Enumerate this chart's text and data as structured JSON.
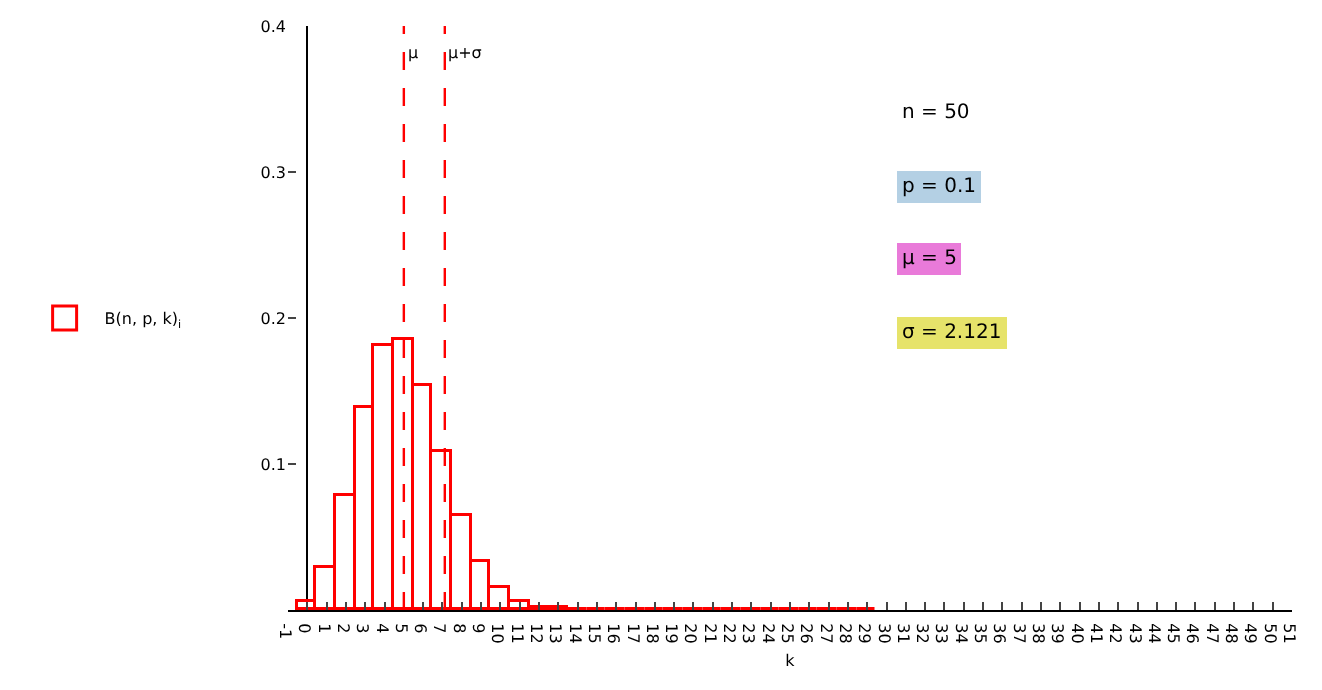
{
  "chart_data": {
    "type": "bar",
    "xlabel": "k",
    "legend": "left",
    "grid": false,
    "x": [
      0,
      1,
      2,
      3,
      4,
      5,
      6,
      7,
      8,
      9,
      10,
      11,
      12,
      13,
      14,
      15,
      16,
      17,
      18,
      19,
      20,
      21,
      22,
      23,
      24,
      25,
      26,
      27,
      28,
      29
    ],
    "series": [
      {
        "name": "B(n, p, k)$_{i}$",
        "color": "#ff0000",
        "values": [
          0.005,
          0.029,
          0.078,
          0.139,
          0.181,
          0.185,
          0.154,
          0.108,
          0.064,
          0.033,
          0.015,
          0.006,
          0.002,
          0.001,
          0,
          0,
          0,
          0,
          0,
          0,
          0,
          0,
          0,
          0,
          0,
          0,
          0,
          0,
          0,
          0
        ]
      }
    ],
    "xlim": [
      -1,
      51
    ],
    "xticks": [
      -1,
      0,
      1,
      2,
      3,
      4,
      5,
      6,
      7,
      8,
      9,
      10,
      11,
      12,
      13,
      14,
      15,
      16,
      17,
      18,
      19,
      20,
      21,
      22,
      23,
      24,
      25,
      26,
      27,
      28,
      29,
      30,
      31,
      32,
      33,
      34,
      35,
      36,
      37,
      38,
      39,
      40,
      41,
      42,
      43,
      44,
      45,
      46,
      47,
      48,
      49,
      50,
      51
    ],
    "ylim": [
      0,
      0.4
    ],
    "yticks": [
      {
        "value": 0,
        "label": null
      },
      0.1,
      0.2,
      0.3,
      0.4
    ],
    "ref_lines": [
      {
        "axis": "x",
        "value": 5,
        "label": "μ",
        "color": "#ff0000",
        "line_style": "dashed"
      },
      {
        "axis": "x",
        "value": 7.121,
        "label": "μ+σ",
        "color": "#ff0000",
        "line_style": "dashed"
      }
    ],
    "annotations": [
      "n = 50",
      "p = 0.1",
      "μ = 5",
      "σ = 2.121"
    ]
  }
}
